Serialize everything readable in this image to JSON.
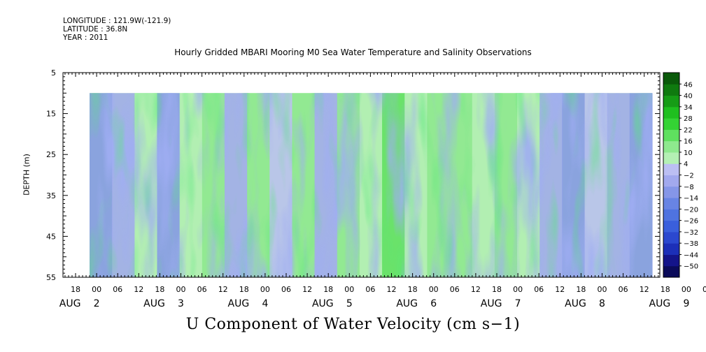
{
  "header": {
    "longitude": "LONGITUDE : 121.9W(-121.9)",
    "latitude": "LATITUDE : 36.8N",
    "year": "YEAR : 2011"
  },
  "title": "Hourly Gridded MBARI Mooring M0 Sea Water Temperature and Salinity Observations",
  "bottom_title": "U Component of Water Velocity (cm s−1)",
  "chart_data": {
    "type": "heatmap",
    "ylabel": "DEPTH (m)",
    "ylim": [
      5,
      55
    ],
    "y_inverted": true,
    "y_ticks": [
      5,
      15,
      25,
      35,
      45,
      55
    ],
    "x_hour_ticks": [
      "18",
      "00",
      "06",
      "12",
      "18",
      "00",
      "06",
      "12",
      "18",
      "00",
      "06",
      "12",
      "18",
      "00",
      "06",
      "12",
      "18",
      "00",
      "06",
      "12",
      "18",
      "00",
      "06",
      "12",
      "18",
      "00",
      "06",
      "12",
      "18",
      "00",
      "06",
      "12"
    ],
    "x_day_labels": [
      {
        "month": "AUG",
        "day": "2"
      },
      {
        "month": "AUG",
        "day": "3"
      },
      {
        "month": "AUG",
        "day": "4"
      },
      {
        "month": "AUG",
        "day": "5"
      },
      {
        "month": "AUG",
        "day": "6"
      },
      {
        "month": "AUG",
        "day": "7"
      },
      {
        "month": "AUG",
        "day": "8"
      },
      {
        "month": "AUG",
        "day": "9"
      }
    ],
    "data_depth_range": [
      10,
      55
    ],
    "colorbar": {
      "levels": [
        -50,
        -44,
        -38,
        -32,
        -26,
        -20,
        -14,
        -8,
        -2,
        4,
        10,
        16,
        22,
        28,
        34,
        40,
        46
      ],
      "colors": [
        "#0b0b5a",
        "#14148a",
        "#1c2fb8",
        "#2b48cf",
        "#3a5fdc",
        "#4f73e0",
        "#6884e4",
        "#8596e8",
        "#a2a9ee",
        "#bcbff3",
        "#b4f0b4",
        "#8ee98e",
        "#5fe05f",
        "#34d334",
        "#1fbf1f",
        "#169c16",
        "#0f7a0f",
        "#0a5a0a"
      ]
    },
    "series_description": "U velocity field by time (Aug 1 18h to Aug 9 ~16h) and depth (10-55 m); values mostly between -14 and 22 cm/s, alternating blue (negative) and green (positive) bands",
    "columns": [
      {
        "t": 0.0,
        "v": -8
      },
      {
        "t": 0.04,
        "v": -4
      },
      {
        "t": 0.08,
        "v": 6
      },
      {
        "t": 0.12,
        "v": -10
      },
      {
        "t": 0.16,
        "v": 8
      },
      {
        "t": 0.2,
        "v": 14
      },
      {
        "t": 0.24,
        "v": -6
      },
      {
        "t": 0.28,
        "v": 12
      },
      {
        "t": 0.32,
        "v": 4
      },
      {
        "t": 0.36,
        "v": 16
      },
      {
        "t": 0.4,
        "v": -2
      },
      {
        "t": 0.44,
        "v": 14
      },
      {
        "t": 0.48,
        "v": 10
      },
      {
        "t": 0.52,
        "v": 18
      },
      {
        "t": 0.56,
        "v": 8
      },
      {
        "t": 0.6,
        "v": 12
      },
      {
        "t": 0.64,
        "v": 16
      },
      {
        "t": 0.68,
        "v": 6
      },
      {
        "t": 0.72,
        "v": 14
      },
      {
        "t": 0.76,
        "v": 10
      },
      {
        "t": 0.8,
        "v": -6
      },
      {
        "t": 0.84,
        "v": -10
      },
      {
        "t": 0.88,
        "v": 4
      },
      {
        "t": 0.92,
        "v": -4
      },
      {
        "t": 0.96,
        "v": -8
      },
      {
        "t": 1.0,
        "v": 6
      }
    ]
  }
}
